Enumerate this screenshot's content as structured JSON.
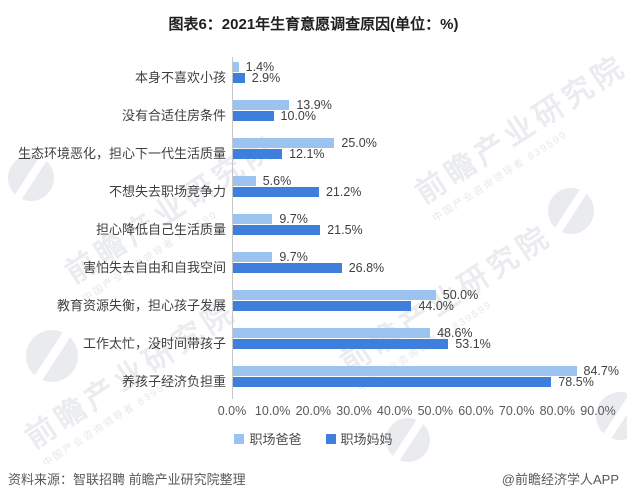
{
  "title": "图表6：2021年生育意愿调查原因(单位：%)",
  "chart_data": {
    "type": "bar",
    "orientation": "horizontal",
    "title": "图表6：2021年生育意愿调查原因(单位：%)",
    "unit": "%",
    "categories": [
      "本身不喜欢小孩",
      "没有合适住房条件",
      "生态环境恶化，担心下一代生活质量",
      "不想失去职场竞争力",
      "担心降低自己生活质量",
      "害怕失去自由和自我空间",
      "教育资源失衡，担心孩子发展",
      "工作太忙，没时间带孩子",
      "养孩子经济负担重"
    ],
    "series": [
      {
        "key": "dad",
        "name": "职场爸爸",
        "color": "#9CC3F0",
        "values": [
          1.4,
          13.9,
          25.0,
          5.6,
          9.7,
          9.7,
          50.0,
          48.6,
          84.7
        ]
      },
      {
        "key": "mom",
        "name": "职场妈妈",
        "color": "#3E7EDD",
        "values": [
          2.9,
          10.0,
          12.1,
          21.2,
          21.5,
          26.8,
          44.0,
          53.1,
          78.5
        ]
      }
    ],
    "x_ticks": [
      "0.0%",
      "10.0%",
      "20.0%",
      "30.0%",
      "40.0%",
      "50.0%",
      "60.0%",
      "70.0%",
      "80.0%",
      "90.0%"
    ],
    "xlim": [
      0,
      90
    ],
    "grid": false,
    "legend_position": "bottom"
  },
  "footer": {
    "source": "资料来源：智联招聘 前瞻产业研究院整理",
    "credit": "@前瞻经济学人APP"
  },
  "watermark": {
    "text": "前瞻产业研究院",
    "subtext": "中国产业咨询领导者 839599"
  }
}
